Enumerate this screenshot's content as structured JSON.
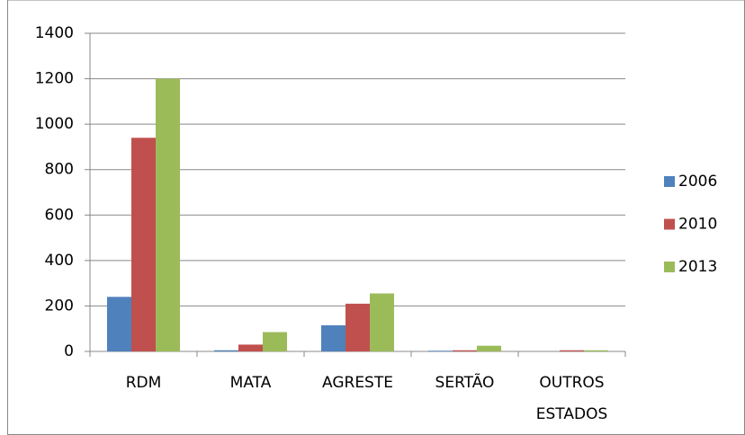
{
  "chart_data": {
    "type": "bar",
    "categories": [
      "RDM",
      "MATA",
      "AGRESTE",
      "SERTÃO",
      "OUTROS ESTADOS"
    ],
    "series": [
      {
        "name": "2006",
        "color": "#4f81bd",
        "values": [
          240,
          5,
          115,
          3,
          0
        ]
      },
      {
        "name": "2010",
        "color": "#c0504d",
        "values": [
          940,
          30,
          210,
          5,
          5
        ]
      },
      {
        "name": "2013",
        "color": "#9bbb59",
        "values": [
          1200,
          85,
          255,
          25,
          5
        ]
      }
    ],
    "ylim": [
      0,
      1400
    ],
    "yticks": [
      0,
      200,
      400,
      600,
      800,
      1000,
      1200,
      1400
    ],
    "grid": true,
    "legend": "right"
  }
}
